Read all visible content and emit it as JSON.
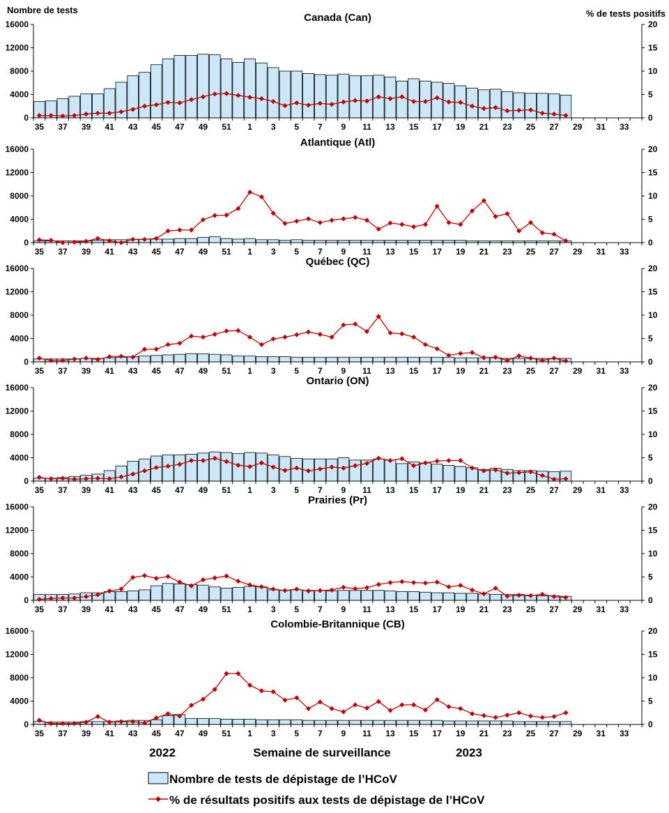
{
  "header": {
    "left_axis_title": "Nombre de tests",
    "right_axis_title": "% de tests positifs"
  },
  "x_axis": {
    "title": "Semaine de surveillance",
    "year_left": "2022",
    "year_right": "2023",
    "tick_labels": [
      "35",
      "37",
      "39",
      "41",
      "43",
      "45",
      "47",
      "49",
      "51",
      "1",
      "3",
      "5",
      "7",
      "9",
      "11",
      "13",
      "15",
      "17",
      "19",
      "21",
      "23",
      "25",
      "27",
      "29",
      "31",
      "33"
    ]
  },
  "legend": {
    "bar_label": "Nombre de tests de dépistage de l’HCoV",
    "line_label": "% de résultats positifs aux tests de dépistage de l’HCoV"
  },
  "colors": {
    "bar_fill": "#cce8f8",
    "bar_stroke": "#000000",
    "line": "#c00000"
  },
  "chart_data": {
    "type": "bar+line",
    "weeks": [
      35,
      36,
      37,
      38,
      39,
      40,
      41,
      42,
      43,
      44,
      45,
      46,
      47,
      48,
      49,
      50,
      51,
      52,
      1,
      2,
      3,
      4,
      5,
      6,
      7,
      8,
      9,
      10,
      11,
      12,
      13,
      14,
      15,
      16,
      17,
      18,
      19,
      20,
      21,
      22,
      23,
      24,
      25,
      26,
      27,
      28,
      29,
      30,
      31,
      32,
      33,
      34
    ],
    "y_left_ticks": [
      "0",
      "4000",
      "8000",
      "12000",
      "16000"
    ],
    "y_right_ticks": [
      "0",
      "5",
      "10",
      "15",
      "20"
    ],
    "y_left_range": [
      0,
      16000
    ],
    "y_right_range": [
      0,
      20
    ],
    "panels": [
      {
        "title": "Canada (Can)",
        "tests": [
          2800,
          2900,
          3300,
          3700,
          4100,
          4100,
          5000,
          6100,
          7200,
          7800,
          9100,
          10100,
          10700,
          10700,
          10900,
          10800,
          10100,
          9500,
          10100,
          9400,
          8600,
          8000,
          8000,
          7600,
          7400,
          7300,
          7500,
          7200,
          7200,
          7300,
          7000,
          6300,
          6700,
          6300,
          6100,
          5900,
          5500,
          5100,
          4800,
          4900,
          4500,
          4300,
          4200,
          4200,
          4100,
          3900
        ],
        "percent": [
          0.5,
          0.5,
          0.4,
          0.5,
          0.8,
          1.0,
          1.0,
          1.3,
          1.8,
          2.5,
          2.8,
          3.3,
          3.2,
          3.9,
          4.5,
          5.1,
          5.2,
          4.8,
          4.4,
          4.1,
          3.5,
          2.6,
          3.2,
          2.7,
          3.1,
          2.9,
          3.4,
          3.7,
          3.6,
          4.5,
          4.1,
          4.5,
          3.5,
          3.5,
          4.3,
          3.4,
          3.3,
          2.5,
          2.0,
          2.2,
          1.5,
          1.6,
          1.7,
          1.0,
          0.8,
          0.5
        ]
      },
      {
        "title": "Atlantique (Atl)",
        "tests": [
          300,
          300,
          300,
          300,
          300,
          400,
          500,
          500,
          600,
          600,
          600,
          600,
          700,
          700,
          900,
          1000,
          700,
          600,
          700,
          500,
          500,
          400,
          500,
          400,
          400,
          400,
          400,
          400,
          400,
          400,
          400,
          400,
          400,
          400,
          400,
          400,
          400,
          300,
          300,
          300,
          300,
          300,
          300,
          300,
          300,
          300
        ],
        "percent": [
          0.6,
          0.5,
          0.0,
          0.1,
          0.3,
          0.9,
          0.4,
          0.0,
          0.7,
          0.7,
          0.9,
          2.5,
          2.7,
          2.7,
          4.9,
          5.8,
          5.9,
          7.3,
          10.8,
          9.8,
          6.3,
          4.1,
          4.6,
          5.1,
          4.3,
          4.8,
          5.1,
          5.4,
          4.8,
          2.9,
          4.2,
          3.9,
          3.4,
          3.9,
          7.8,
          4.3,
          3.9,
          6.8,
          9.0,
          5.6,
          6.2,
          2.5,
          4.3,
          2.1,
          1.8,
          0.4
        ]
      },
      {
        "title": "Québec (QC)",
        "tests": [
          500,
          500,
          500,
          500,
          600,
          600,
          700,
          800,
          900,
          1000,
          1100,
          1200,
          1300,
          1400,
          1400,
          1300,
          1200,
          1000,
          1000,
          900,
          900,
          900,
          800,
          800,
          800,
          800,
          800,
          800,
          800,
          800,
          800,
          800,
          800,
          800,
          800,
          800,
          700,
          700,
          700,
          700,
          600,
          600,
          600,
          600,
          600,
          600
        ],
        "percent": [
          0.8,
          0.3,
          0.3,
          0.6,
          0.8,
          0.5,
          1.1,
          1.2,
          1.0,
          2.7,
          2.7,
          3.7,
          4.0,
          5.5,
          5.3,
          5.9,
          6.6,
          6.7,
          5.3,
          3.7,
          4.9,
          5.3,
          5.8,
          6.4,
          5.9,
          5.3,
          7.9,
          8.1,
          6.5,
          9.7,
          6.2,
          6.0,
          5.3,
          3.7,
          2.8,
          1.4,
          1.8,
          2.0,
          0.9,
          1.0,
          0.3,
          1.3,
          0.8,
          0.3,
          0.8,
          0.2
        ]
      },
      {
        "title": "Ontario (ON)",
        "tests": [
          500,
          500,
          600,
          800,
          1000,
          1200,
          1800,
          2600,
          3400,
          3800,
          4300,
          4500,
          4500,
          4600,
          4800,
          5000,
          4900,
          4700,
          4900,
          4800,
          4500,
          4200,
          3900,
          3800,
          3800,
          3800,
          4000,
          3600,
          3600,
          3800,
          3600,
          3000,
          3300,
          3100,
          2900,
          2700,
          2500,
          2300,
          2000,
          2200,
          2000,
          1800,
          1800,
          1700,
          1600,
          1700
        ],
        "percent": [
          0.8,
          0.5,
          0.6,
          0.4,
          0.5,
          0.6,
          0.5,
          0.9,
          1.5,
          2.2,
          2.9,
          3.2,
          3.6,
          4.4,
          4.4,
          4.9,
          4.2,
          3.4,
          3.1,
          3.9,
          3.0,
          2.3,
          2.8,
          2.2,
          2.6,
          3.0,
          2.8,
          3.3,
          3.8,
          4.9,
          4.4,
          4.8,
          3.3,
          3.9,
          4.3,
          4.4,
          4.4,
          2.8,
          2.2,
          2.4,
          1.7,
          1.8,
          2.0,
          1.2,
          0.4,
          0.5
        ]
      },
      {
        "title": "Prairies (Pr)",
        "tests": [
          1000,
          1000,
          1000,
          1100,
          1300,
          1300,
          1500,
          1500,
          1600,
          1800,
          2500,
          2900,
          2800,
          2700,
          2600,
          2300,
          2100,
          2200,
          2400,
          2300,
          1800,
          1700,
          1800,
          1700,
          1700,
          1600,
          1700,
          1700,
          1700,
          1700,
          1600,
          1500,
          1500,
          1400,
          1300,
          1300,
          1200,
          1200,
          1100,
          1000,
          1000,
          1000,
          900,
          800,
          800,
          700
        ],
        "percent": [
          0.2,
          0.4,
          0.5,
          0.5,
          0.8,
          1.2,
          2.0,
          2.4,
          4.9,
          5.3,
          4.7,
          5.1,
          3.9,
          3.1,
          4.4,
          4.8,
          5.2,
          4.1,
          3.3,
          2.9,
          2.4,
          2.1,
          2.4,
          2.0,
          2.1,
          2.2,
          2.8,
          2.5,
          2.7,
          3.4,
          3.8,
          4.0,
          3.8,
          3.7,
          3.9,
          2.9,
          3.2,
          2.2,
          1.4,
          2.6,
          0.9,
          1.1,
          1.0,
          1.3,
          0.8,
          0.6
        ]
      },
      {
        "title": "Colombie-Britannique (CB)",
        "tests": [
          500,
          400,
          400,
          400,
          500,
          500,
          500,
          600,
          700,
          700,
          800,
          1500,
          1700,
          1000,
          1000,
          1000,
          900,
          900,
          900,
          800,
          800,
          800,
          800,
          700,
          700,
          700,
          700,
          700,
          700,
          700,
          700,
          700,
          700,
          700,
          700,
          600,
          600,
          600,
          600,
          600,
          600,
          500,
          500,
          500,
          500,
          500
        ],
        "percent": [
          0.9,
          0.2,
          0.2,
          0.2,
          0.5,
          1.7,
          0.5,
          0.6,
          0.6,
          0.3,
          1.4,
          2.3,
          1.8,
          4.1,
          5.4,
          7.5,
          10.9,
          10.9,
          8.4,
          7.2,
          7.0,
          5.2,
          5.7,
          3.4,
          4.8,
          3.4,
          2.7,
          4.2,
          3.5,
          4.9,
          3.0,
          4.2,
          4.2,
          3.1,
          5.3,
          3.8,
          3.4,
          2.3,
          1.9,
          1.5,
          2.0,
          2.5,
          1.8,
          1.5,
          1.7,
          2.5
        ]
      }
    ]
  }
}
